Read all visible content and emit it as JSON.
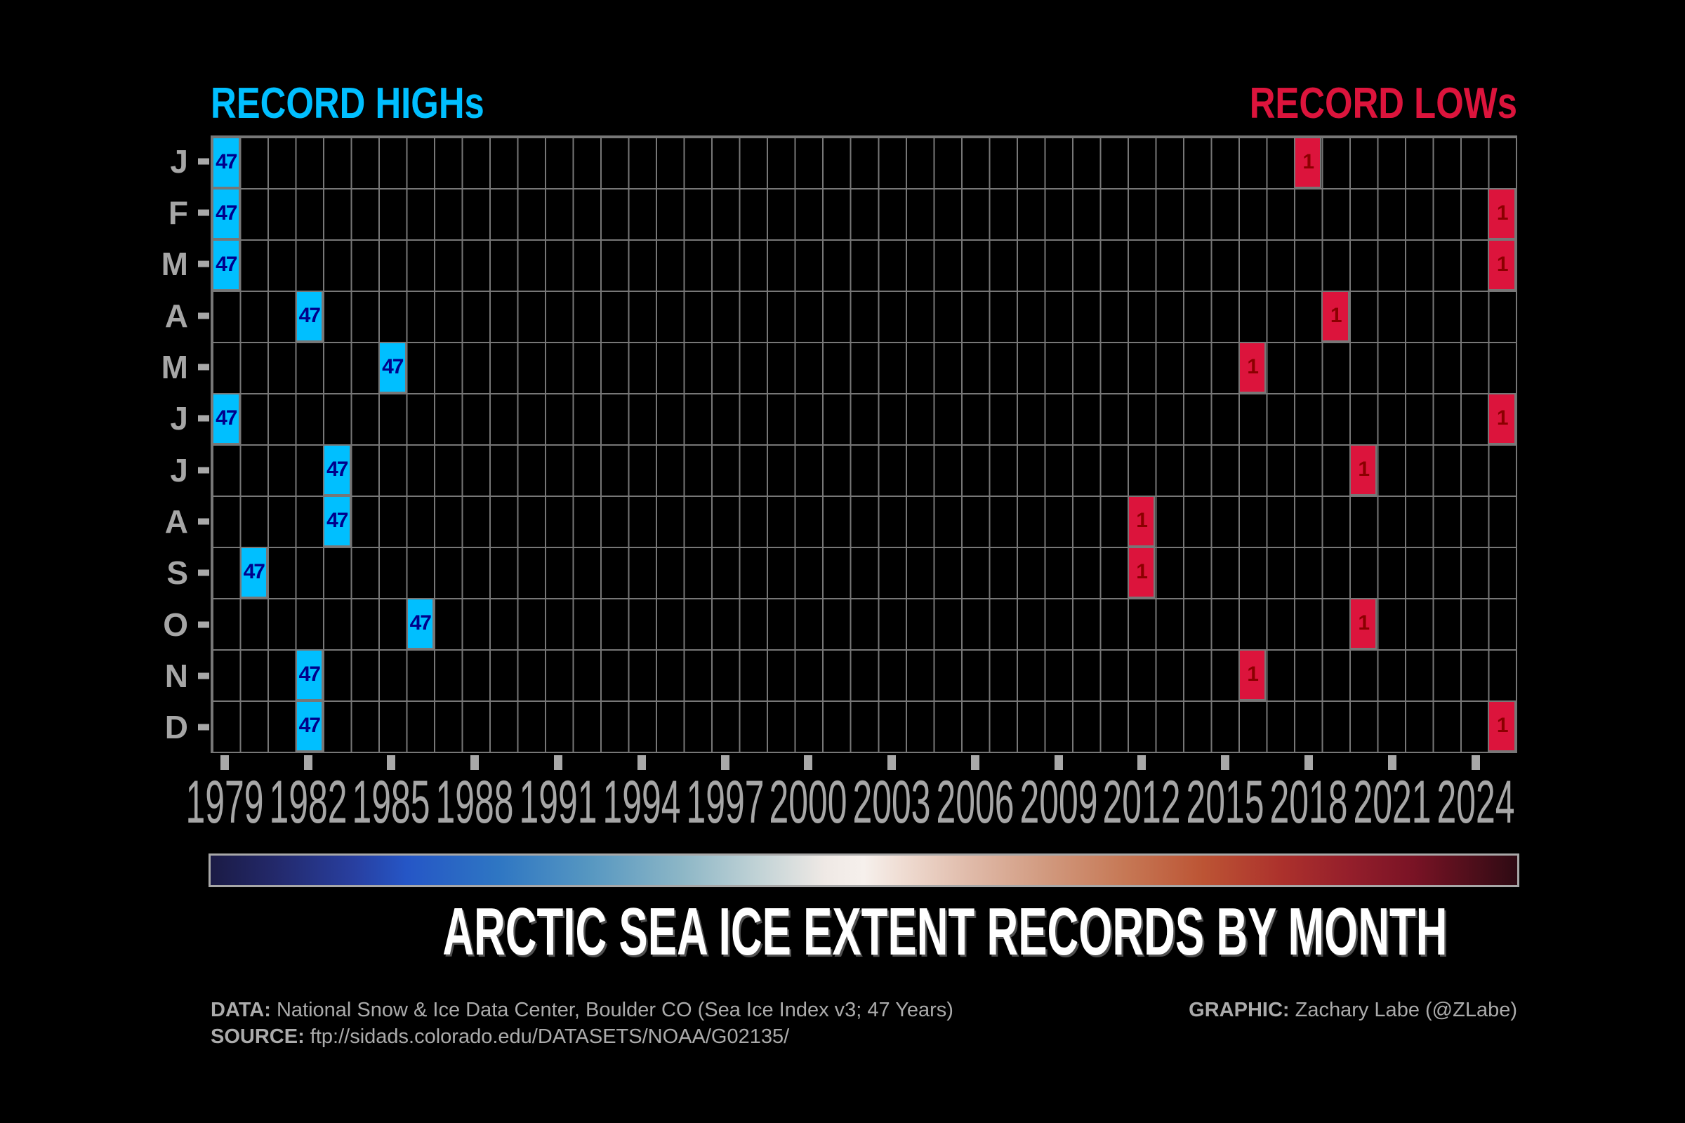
{
  "header": {
    "highs_label": "RECORD HIGHs",
    "lows_label": "RECORD LOWs"
  },
  "title": "ARCTIC SEA ICE EXTENT RECORDS BY MONTH",
  "footer": {
    "data_label": "DATA:",
    "data_text": " National Snow & Ice Data Center, Boulder CO (Sea Ice Index v3; 47 Years)",
    "source_label": "SOURCE:",
    "source_text": " ftp://sidads.colorado.edu/DATASETS/NOAA/G02135/",
    "graphic_label": "GRAPHIC:",
    "graphic_text": " Zachary Labe (@ZLabe)"
  },
  "colors": {
    "background": "#000000",
    "grid_line": "#777777",
    "tick": "#A9A9A9",
    "axis_label": "#A6A6A6",
    "highs_accent": "#00BFFF",
    "lows_accent": "#DC143C",
    "high_cell_text": "#00008B",
    "low_cell_text": "#8B0000",
    "title_text": "#FFFFFF",
    "footer_text": "#ABABAB"
  },
  "chart_data": {
    "type": "heatmap",
    "title": "ARCTIC SEA ICE EXTENT RECORDS BY MONTH",
    "xlabel": "",
    "ylabel": "",
    "n_years": 47,
    "years_range": [
      1979,
      2025
    ],
    "x_ticks": [
      1979,
      1982,
      1985,
      1988,
      1991,
      1994,
      1997,
      2000,
      2003,
      2006,
      2009,
      2012,
      2015,
      2018,
      2021,
      2024
    ],
    "month_labels": [
      "J",
      "F",
      "M",
      "A",
      "M",
      "J",
      "J",
      "A",
      "S",
      "O",
      "N",
      "D"
    ],
    "grid": "on",
    "record_highs": {
      "legend": "RECORD HIGHs",
      "value_label": "47",
      "cell_color": "#00BFFF",
      "text_color": "#00008B",
      "cells": [
        {
          "month_index": 0,
          "year": 1979
        },
        {
          "month_index": 1,
          "year": 1979
        },
        {
          "month_index": 2,
          "year": 1979
        },
        {
          "month_index": 3,
          "year": 1982
        },
        {
          "month_index": 4,
          "year": 1985
        },
        {
          "month_index": 5,
          "year": 1979
        },
        {
          "month_index": 6,
          "year": 1983
        },
        {
          "month_index": 7,
          "year": 1983
        },
        {
          "month_index": 8,
          "year": 1980
        },
        {
          "month_index": 9,
          "year": 1986
        },
        {
          "month_index": 10,
          "year": 1982
        },
        {
          "month_index": 11,
          "year": 1982
        }
      ]
    },
    "record_lows": {
      "legend": "RECORD LOWs",
      "value_label": "1",
      "cell_color": "#DC143C",
      "text_color": "#8B0000",
      "cells": [
        {
          "month_index": 0,
          "year": 2018
        },
        {
          "month_index": 1,
          "year": 2025
        },
        {
          "month_index": 2,
          "year": 2025
        },
        {
          "month_index": 3,
          "year": 2019
        },
        {
          "month_index": 4,
          "year": 2016
        },
        {
          "month_index": 5,
          "year": 2025
        },
        {
          "month_index": 6,
          "year": 2020
        },
        {
          "month_index": 7,
          "year": 2012
        },
        {
          "month_index": 8,
          "year": 2012
        },
        {
          "month_index": 9,
          "year": 2020
        },
        {
          "month_index": 10,
          "year": 2016
        },
        {
          "month_index": 11,
          "year": 2025
        }
      ]
    },
    "colorbar_stops": [
      [
        "0%",
        "#1B1B45"
      ],
      [
        "5%",
        "#23296B"
      ],
      [
        "11%",
        "#283FA0"
      ],
      [
        "15%",
        "#2556C6"
      ],
      [
        "22%",
        "#2E76C3"
      ],
      [
        "29%",
        "#5697C1"
      ],
      [
        "36%",
        "#8CB6C6"
      ],
      [
        "42%",
        "#C2D3D6"
      ],
      [
        "47%",
        "#EFE9E5"
      ],
      [
        "50%",
        "#F6F0EC"
      ],
      [
        "53%",
        "#EFDCD2"
      ],
      [
        "58%",
        "#E0BBAA"
      ],
      [
        "64%",
        "#D1997E"
      ],
      [
        "70%",
        "#C67855"
      ],
      [
        "76%",
        "#BC5434"
      ],
      [
        "82%",
        "#AC312C"
      ],
      [
        "87%",
        "#951F2B"
      ],
      [
        "92%",
        "#7A1325"
      ],
      [
        "96%",
        "#540F1C"
      ],
      [
        "100%",
        "#2E0A13"
      ]
    ]
  }
}
